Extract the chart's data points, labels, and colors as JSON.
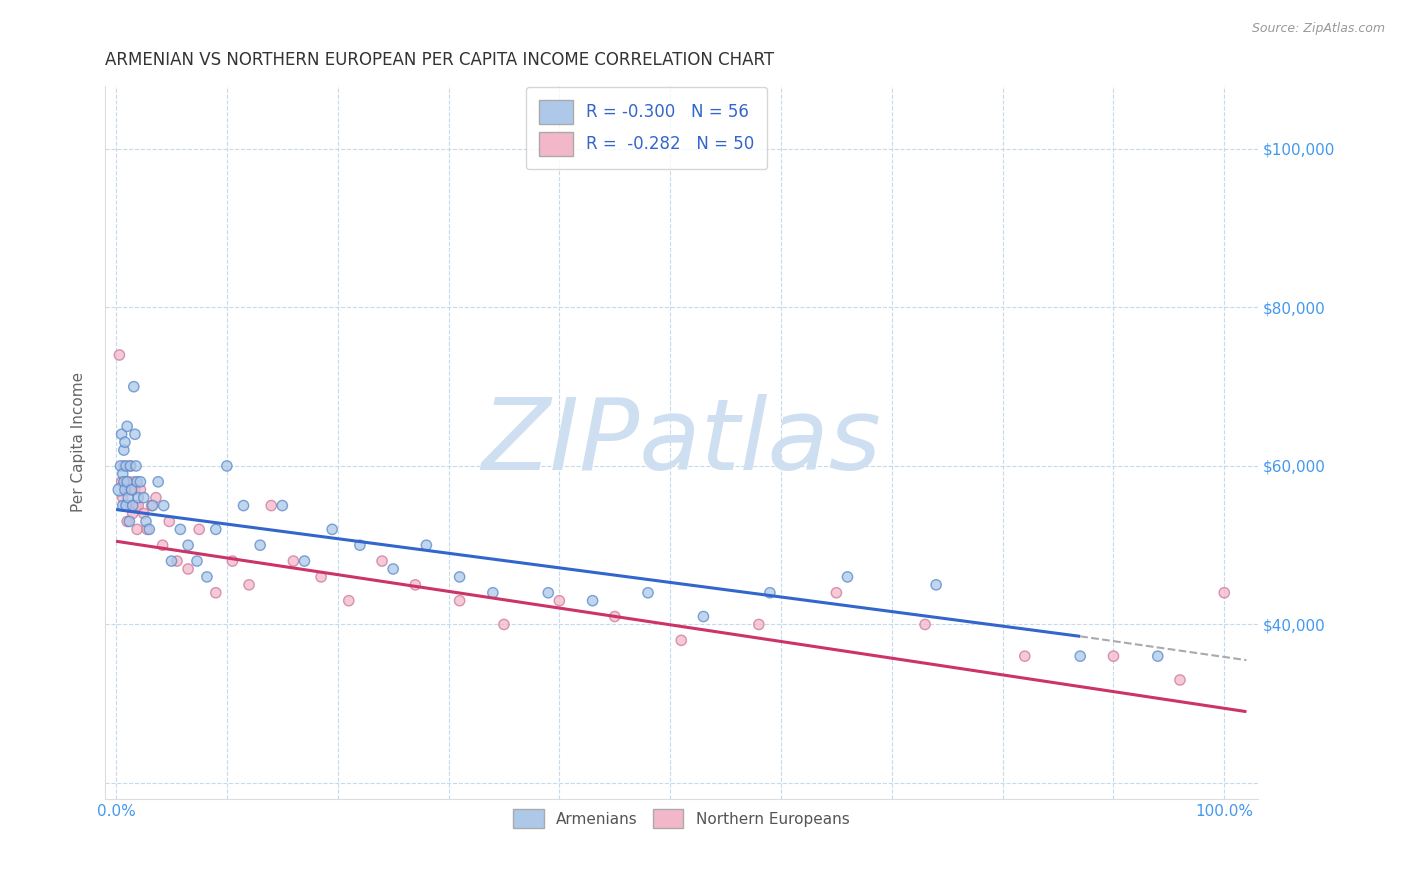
{
  "title": "ARMENIAN VS NORTHERN EUROPEAN PER CAPITA INCOME CORRELATION CHART",
  "source": "Source: ZipAtlas.com",
  "ylabel": "Per Capita Income",
  "y_ticks": [
    20000,
    40000,
    60000,
    80000,
    100000
  ],
  "y_tick_labels_right": [
    "",
    "$40,000",
    "$60,000",
    "$80,000",
    "$100,000"
  ],
  "ylim": [
    18000,
    108000
  ],
  "xlim": [
    -0.01,
    1.03
  ],
  "armenians_color": "#adc8e8",
  "armenians_edge_color": "#5588cc",
  "northern_europeans_color": "#f2b8ca",
  "northern_europeans_edge_color": "#cc7799",
  "trend_armenians_color": "#3366cc",
  "trend_northern_color": "#cc3366",
  "legend_r1": "R = -0.300   N = 56",
  "legend_r2": "R =  -0.282   N = 50",
  "legend_armenians": "Armenians",
  "legend_northern": "Northern Europeans",
  "watermark": "ZIPatlas",
  "watermark_color": "#cddff0",
  "grid_color": "#c5daea",
  "background_color": "#ffffff",
  "title_color": "#333333",
  "ylabel_color": "#666666",
  "yaxis_right_color": "#4499ee",
  "xaxis_color": "#4499ee",
  "armenians_x": [
    0.003,
    0.004,
    0.005,
    0.006,
    0.006,
    0.007,
    0.007,
    0.008,
    0.008,
    0.009,
    0.009,
    0.01,
    0.01,
    0.011,
    0.012,
    0.013,
    0.014,
    0.015,
    0.016,
    0.017,
    0.018,
    0.019,
    0.02,
    0.022,
    0.025,
    0.027,
    0.03,
    0.033,
    0.038,
    0.043,
    0.05,
    0.058,
    0.065,
    0.073,
    0.082,
    0.09,
    0.1,
    0.115,
    0.13,
    0.15,
    0.17,
    0.195,
    0.22,
    0.25,
    0.28,
    0.31,
    0.34,
    0.39,
    0.43,
    0.48,
    0.53,
    0.59,
    0.66,
    0.74,
    0.87,
    0.94
  ],
  "armenians_y": [
    57000,
    60000,
    64000,
    59000,
    55000,
    62000,
    58000,
    63000,
    57000,
    60000,
    55000,
    65000,
    58000,
    56000,
    53000,
    60000,
    57000,
    55000,
    70000,
    64000,
    60000,
    58000,
    56000,
    58000,
    56000,
    53000,
    52000,
    55000,
    58000,
    55000,
    48000,
    52000,
    50000,
    48000,
    46000,
    52000,
    60000,
    55000,
    50000,
    55000,
    48000,
    52000,
    50000,
    47000,
    50000,
    46000,
    44000,
    44000,
    43000,
    44000,
    41000,
    44000,
    46000,
    45000,
    36000,
    36000
  ],
  "armenians_size": [
    80,
    55,
    55,
    55,
    55,
    55,
    55,
    55,
    55,
    55,
    55,
    55,
    55,
    55,
    55,
    55,
    55,
    55,
    55,
    55,
    55,
    55,
    55,
    55,
    55,
    55,
    55,
    55,
    55,
    55,
    55,
    55,
    55,
    55,
    55,
    55,
    55,
    55,
    55,
    55,
    55,
    55,
    55,
    55,
    55,
    55,
    55,
    55,
    55,
    55,
    55,
    55,
    55,
    55,
    55,
    55
  ],
  "northern_x": [
    0.003,
    0.005,
    0.006,
    0.007,
    0.008,
    0.009,
    0.01,
    0.01,
    0.011,
    0.012,
    0.012,
    0.013,
    0.014,
    0.015,
    0.016,
    0.017,
    0.018,
    0.019,
    0.02,
    0.022,
    0.025,
    0.028,
    0.032,
    0.036,
    0.042,
    0.048,
    0.055,
    0.065,
    0.075,
    0.09,
    0.105,
    0.12,
    0.14,
    0.16,
    0.185,
    0.21,
    0.24,
    0.27,
    0.31,
    0.35,
    0.4,
    0.45,
    0.51,
    0.58,
    0.65,
    0.73,
    0.82,
    0.9,
    0.96,
    1.0
  ],
  "northern_y": [
    74000,
    58000,
    56000,
    60000,
    58000,
    55000,
    57000,
    53000,
    58000,
    57000,
    55000,
    60000,
    57000,
    54000,
    58000,
    57000,
    55000,
    52000,
    55000,
    57000,
    54000,
    52000,
    55000,
    56000,
    50000,
    53000,
    48000,
    47000,
    52000,
    44000,
    48000,
    45000,
    55000,
    48000,
    46000,
    43000,
    48000,
    45000,
    43000,
    40000,
    43000,
    41000,
    38000,
    40000,
    44000,
    40000,
    36000,
    36000,
    33000,
    44000
  ],
  "northern_size": [
    55,
    55,
    55,
    55,
    55,
    55,
    55,
    55,
    55,
    55,
    55,
    55,
    55,
    55,
    55,
    55,
    55,
    55,
    55,
    55,
    55,
    55,
    55,
    55,
    55,
    55,
    55,
    55,
    55,
    55,
    55,
    55,
    55,
    55,
    55,
    55,
    55,
    55,
    55,
    55,
    55,
    55,
    55,
    55,
    55,
    55,
    55,
    55,
    55,
    55
  ],
  "trend_armenians_x0": 0.0,
  "trend_armenians_y0": 54500,
  "trend_armenians_x1": 0.87,
  "trend_armenians_y1": 38500,
  "trend_armenians_dashed_x0": 0.87,
  "trend_armenians_dashed_y0": 38500,
  "trend_armenians_dashed_x1": 1.02,
  "trend_armenians_dashed_y1": 35500,
  "trend_northern_x0": 0.0,
  "trend_northern_y0": 50500,
  "trend_northern_x1": 1.02,
  "trend_northern_y1": 29000
}
